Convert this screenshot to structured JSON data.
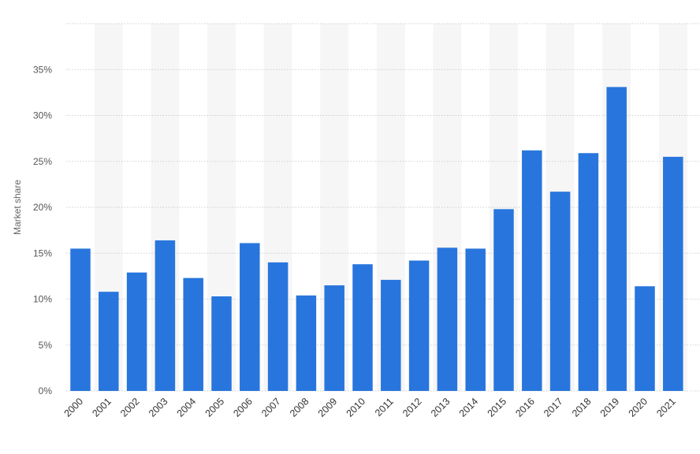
{
  "chart_data": {
    "type": "bar",
    "categories": [
      "2000",
      "2001",
      "2002",
      "2003",
      "2004",
      "2005",
      "2006",
      "2007",
      "2008",
      "2009",
      "2010",
      "2011",
      "2012",
      "2013",
      "2014",
      "2015",
      "2016",
      "2017",
      "2018",
      "2019",
      "2020",
      "2021"
    ],
    "values": [
      15.5,
      10.8,
      12.9,
      16.4,
      12.3,
      10.3,
      16.1,
      14.0,
      10.4,
      11.5,
      13.8,
      12.1,
      14.2,
      15.6,
      15.5,
      19.8,
      26.2,
      21.7,
      25.9,
      33.1,
      11.4,
      25.5
    ],
    "ylabel": "Market share",
    "ylim": [
      0,
      40
    ],
    "y_ticks": [
      "0%",
      "5%",
      "10%",
      "15%",
      "20%",
      "25%",
      "30%",
      "35%"
    ],
    "grid": true,
    "alternating_column_shading": true,
    "bar_color": "#2876dd",
    "shade_color": "#f6f6f6",
    "grid_color": "#cfcfcf"
  }
}
